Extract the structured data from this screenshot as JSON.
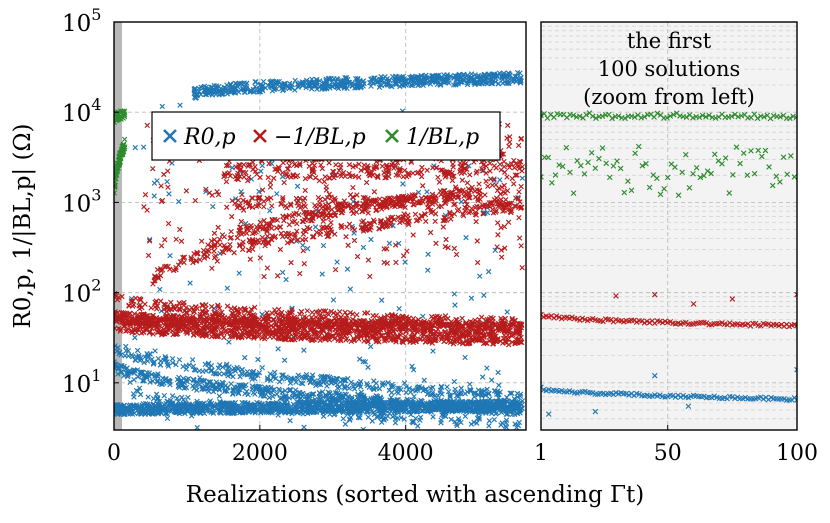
{
  "figure": {
    "ylabel": "R0,p, 1/|BL,p| (Ω)",
    "xlabel": "Realizations (sorted with ascending Γt)",
    "colors": {
      "r0": "#1f77b4",
      "neg_inv_bl": "#b71c1c",
      "inv_bl": "#2e8b2e"
    }
  },
  "chart_data": [
    {
      "type": "scatter",
      "xlim": [
        0,
        5650
      ],
      "ylim": [
        3,
        100000
      ],
      "yscale": "log",
      "grid": true,
      "legend": {
        "placement": "upper-left-middle",
        "entries": [
          "R0,p",
          "−1/BL,p",
          "1/BL,p"
        ]
      },
      "xticks": [
        "0",
        "2000",
        "4000"
      ],
      "yticks": [
        {
          "value": 10,
          "base": "10",
          "exp": "1"
        },
        {
          "value": 100,
          "base": "10",
          "exp": "2"
        },
        {
          "value": 1000,
          "base": "10",
          "exp": "3"
        },
        {
          "value": 10000,
          "base": "10",
          "exp": "4"
        },
        {
          "value": 100000,
          "base": "10",
          "exp": "5"
        }
      ],
      "series": [
        {
          "name": "R0,p",
          "color": "#1f77b4",
          "bands": [
            {
              "x": [
                1100,
                5600
              ],
              "y_from": 16000,
              "y_to": 24000,
              "n": 600
            },
            {
              "x": [
                0,
                5600
              ],
              "y_from": 5,
              "y_to": 5.5,
              "n": 1200
            },
            {
              "x": [
                0,
                5600
              ],
              "y_from": 16,
              "y_to": 5,
              "n": 500
            },
            {
              "x": [
                0,
                5600
              ],
              "y_from": 28,
              "y_to": 7,
              "n": 300
            },
            {
              "x": [
                0,
                5600
              ],
              "y_from": 9,
              "y_to": 3.5,
              "n": 150
            }
          ],
          "scatter": {
            "x": [
              200,
              5600
            ],
            "y": [
              3,
              12000
            ],
            "n": 200
          }
        },
        {
          "name": "−1/BL,p",
          "color": "#b71c1c",
          "bands": [
            {
              "x": [
                0,
                5600
              ],
              "y_from": 55,
              "y_to": 40,
              "n": 900
            },
            {
              "x": [
                0,
                5600
              ],
              "y_from": 45,
              "y_to": 30,
              "n": 600
            },
            {
              "x": [
                0,
                5600
              ],
              "y_from": 90,
              "y_to": 45,
              "n": 300
            },
            {
              "x": [
                500,
                5600
              ],
              "y_from": 120,
              "y_to": 900,
              "n": 250
            },
            {
              "x": [
                1200,
                5600
              ],
              "y_from": 250,
              "y_to": 1500,
              "n": 250
            },
            {
              "x": [
                1500,
                5600
              ],
              "y_from": 1000,
              "y_to": 1000,
              "n": 150
            },
            {
              "x": [
                1500,
                5600
              ],
              "y_from": 2000,
              "y_to": 2200,
              "n": 150
            },
            {
              "x": [
                1500,
                5600
              ],
              "y_from": 2800,
              "y_to": 2800,
              "n": 100
            },
            {
              "x": [
                1500,
                5600
              ],
              "y_from": 4800,
              "y_to": 4800,
              "n": 100
            }
          ],
          "scatter": {
            "x": [
              400,
              5600
            ],
            "y": [
              150,
              8000
            ],
            "n": 250
          }
        },
        {
          "name": "1/BL,p",
          "color": "#2e8b2e",
          "bands": [
            {
              "x": [
                5,
                150
              ],
              "y_from": 8800,
              "y_to": 9400,
              "n": 30
            },
            {
              "x": [
                5,
                150
              ],
              "y_from": 1200,
              "y_to": 4500,
              "n": 80
            }
          ]
        }
      ]
    },
    {
      "type": "scatter",
      "xlim": [
        1,
        100
      ],
      "ylim": [
        3,
        100000
      ],
      "yscale": "log",
      "grid": true,
      "annotation": [
        "the first",
        "100 solutions",
        "(zoom from left)"
      ],
      "xticks": [
        "1",
        "50",
        "100"
      ],
      "series": [
        {
          "name": "R0,p",
          "color": "#1f77b4",
          "trend": {
            "from": 8.8,
            "to": 6.6
          },
          "outliers": [
            {
              "x": 4,
              "y": 4.5
            },
            {
              "x": 22,
              "y": 4.8
            },
            {
              "x": 45,
              "y": 12
            },
            {
              "x": 58,
              "y": 5.5
            },
            {
              "x": 100,
              "y": 14
            }
          ]
        },
        {
          "name": "−1/BL,p",
          "color": "#b71c1c",
          "trend": {
            "from": 57,
            "to": 43
          },
          "outliers": [
            {
              "x": 30,
              "y": 92
            },
            {
              "x": 45,
              "y": 95
            },
            {
              "x": 60,
              "y": 75
            },
            {
              "x": 75,
              "y": 85
            },
            {
              "x": 100,
              "y": 95
            }
          ]
        },
        {
          "name": "1/BL,p",
          "color": "#2e8b2e",
          "upper": {
            "y_from": 8500,
            "y_to": 9800
          },
          "lower": {
            "y_from": 1200,
            "y_to": 4200
          }
        }
      ]
    }
  ]
}
